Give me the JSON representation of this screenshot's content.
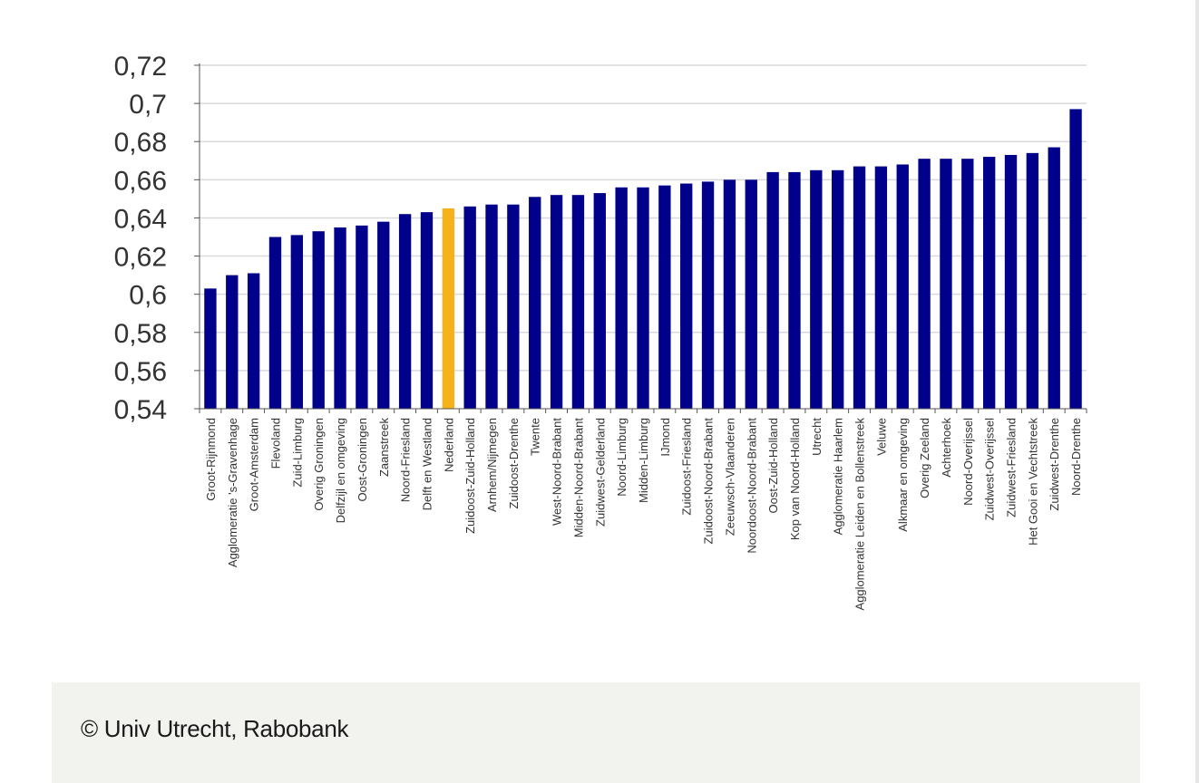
{
  "chart_data": {
    "type": "bar",
    "categories": [
      "Groot-Rijnmond",
      "Agglomeratie 's-Gravenhage",
      "Groot-Amsterdam",
      "Flevoland",
      "Zuid-Limburg",
      "Overig Groningen",
      "Delfzijl en omgeving",
      "Oost-Groningen",
      "Zaanstreek",
      "Noord-Friesland",
      "Delft en Westland",
      "Nederland",
      "Zuidoost-Zuid-Holland",
      "Arnhem/Nijmegen",
      "Zuidoost-Drenthe",
      "Twente",
      "West-Noord-Brabant",
      "Midden-Noord-Brabant",
      "Zuidwest-Gelderland",
      "Noord-Limburg",
      "Midden-Limburg",
      "IJmond",
      "Zuidoost-Friesland",
      "Zuidoost-Noord-Brabant",
      "Zeeuwsch-Vlaanderen",
      "Noordoost-Noord-Brabant",
      "Oost-Zuid-Holland",
      "Kop van Noord-Holland",
      "Utrecht",
      "Agglomeratie Haarlem",
      "Agglomeratie Leiden en Bollenstreek",
      "Veluwe",
      "Alkmaar en omgeving",
      "Overig Zeeland",
      "Achterhoek",
      "Noord-Overijssel",
      "Zuidwest-Overijssel",
      "Zuidwest-Friesland",
      "Het Gooi en Vechtstreek",
      "Zuidwest-Drenthe",
      "Noord-Drenthe"
    ],
    "values": [
      0.603,
      0.61,
      0.611,
      0.63,
      0.631,
      0.633,
      0.635,
      0.636,
      0.638,
      0.642,
      0.643,
      0.645,
      0.646,
      0.647,
      0.647,
      0.651,
      0.652,
      0.652,
      0.653,
      0.656,
      0.656,
      0.657,
      0.658,
      0.659,
      0.66,
      0.66,
      0.664,
      0.664,
      0.665,
      0.665,
      0.667,
      0.667,
      0.668,
      0.671,
      0.671,
      0.671,
      0.672,
      0.673,
      0.674,
      0.677,
      0.697
    ],
    "highlight_category": "Nederland",
    "ylim": [
      0.54,
      0.72
    ],
    "yticks": [
      "0,54",
      "0,56",
      "0,58",
      "0,6",
      "0,62",
      "0,64",
      "0,66",
      "0,68",
      "0,7",
      "0,72"
    ],
    "ytick_values": [
      0.54,
      0.56,
      0.58,
      0.6,
      0.62,
      0.64,
      0.66,
      0.68,
      0.7,
      0.72
    ],
    "grid": true,
    "colors": {
      "bar": "#00008b",
      "highlight": "#f5b21b",
      "grid": "#d9d9d9",
      "axis": "#555555"
    }
  },
  "caption": "© Univ Utrecht, Rabobank"
}
